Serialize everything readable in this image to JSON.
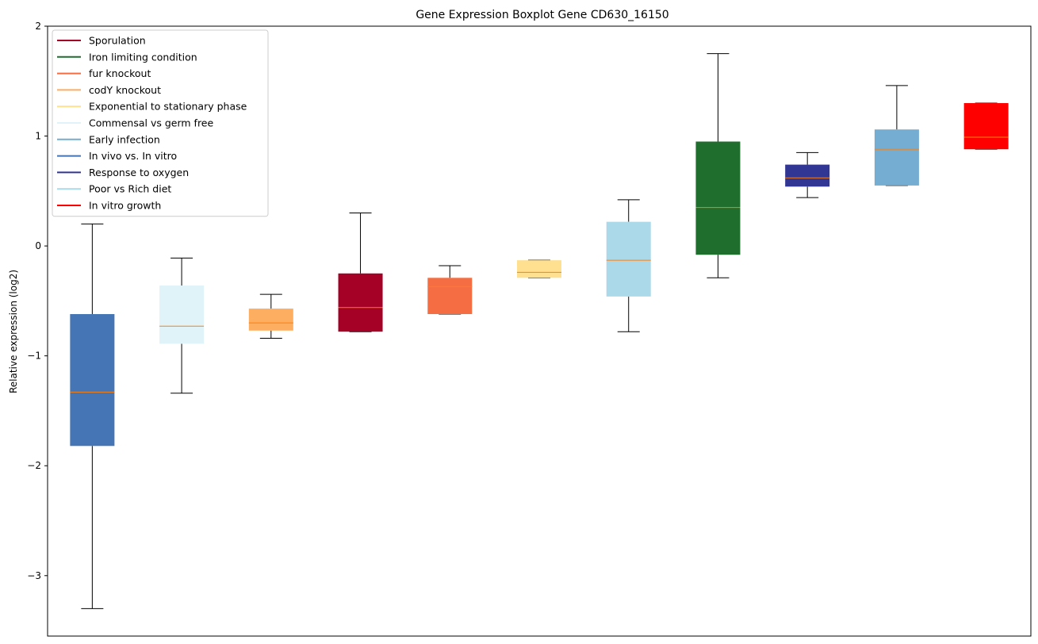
{
  "chart_data": {
    "type": "boxplot",
    "title": "Gene Expression Boxplot Gene CD630_16150",
    "xlabel": "",
    "ylabel": "Relative expression (log2)",
    "ylim": [
      -3.55,
      2.0
    ],
    "yticks": [
      {
        "value": 2,
        "label": "2"
      },
      {
        "value": 1,
        "label": "1"
      },
      {
        "value": 0,
        "label": "0"
      },
      {
        "value": -1,
        "label": "−1"
      },
      {
        "value": -2,
        "label": "−2"
      },
      {
        "value": -3,
        "label": "−3"
      }
    ],
    "median_color": "#ff7f0e",
    "series": [
      {
        "name": "In vivo vs. In vitro",
        "color": "#4575b4",
        "whisker_low": -3.3,
        "q1": -1.82,
        "median": -1.33,
        "q3": -0.62,
        "whisker_high": 0.2
      },
      {
        "name": "Commensal vs germ free",
        "color": "#e0f3f8",
        "whisker_low": -1.34,
        "q1": -0.89,
        "median": -0.73,
        "q3": -0.36,
        "whisker_high": -0.11
      },
      {
        "name": "codY knockout",
        "color": "#fdae61",
        "whisker_low": -0.84,
        "q1": -0.77,
        "median": -0.7,
        "q3": -0.57,
        "whisker_high": -0.44
      },
      {
        "name": "Sporulation",
        "color": "#a50026",
        "whisker_low": -0.78,
        "q1": -0.78,
        "median": -0.56,
        "q3": -0.25,
        "whisker_high": 0.3
      },
      {
        "name": "fur knockout",
        "color": "#f46d43",
        "whisker_low": -0.62,
        "q1": -0.62,
        "median": -0.37,
        "q3": -0.29,
        "whisker_high": -0.18
      },
      {
        "name": "Exponential to stationary phase",
        "color": "#fee090",
        "whisker_low": -0.29,
        "q1": -0.29,
        "median": -0.24,
        "q3": -0.13,
        "whisker_high": -0.13
      },
      {
        "name": "Poor vs Rich diet",
        "color": "#abd9e9",
        "whisker_low": -0.78,
        "q1": -0.46,
        "median": -0.13,
        "q3": 0.22,
        "whisker_high": 0.42
      },
      {
        "name": "Iron limiting condition",
        "color": "#1f6e2e",
        "whisker_low": -0.29,
        "q1": -0.08,
        "median": 0.35,
        "q3": 0.95,
        "whisker_high": 1.75
      },
      {
        "name": "Response to oxygen",
        "color": "#313695",
        "whisker_low": 0.44,
        "q1": 0.54,
        "median": 0.62,
        "q3": 0.74,
        "whisker_high": 0.85
      },
      {
        "name": "Early infection",
        "color": "#74add1",
        "whisker_low": 0.55,
        "q1": 0.55,
        "median": 0.88,
        "q3": 1.06,
        "whisker_high": 1.46
      },
      {
        "name": "In vitro growth",
        "color": "#ff0000",
        "whisker_low": 0.88,
        "q1": 0.88,
        "median": 0.99,
        "q3": 1.3,
        "whisker_high": 1.3
      }
    ],
    "legend": {
      "position": "top-left",
      "entries": [
        {
          "name": "Sporulation",
          "color": "#a50026"
        },
        {
          "name": "Iron limiting condition",
          "color": "#1f6e2e"
        },
        {
          "name": "fur knockout",
          "color": "#f46d43"
        },
        {
          "name": "codY knockout",
          "color": "#fdae61"
        },
        {
          "name": "Exponential to stationary phase",
          "color": "#fee090"
        },
        {
          "name": "Commensal vs germ free",
          "color": "#e0f3f8"
        },
        {
          "name": "Early infection",
          "color": "#74add1"
        },
        {
          "name": "In vivo vs. In vitro",
          "color": "#4575b4"
        },
        {
          "name": "Response to oxygen",
          "color": "#313695"
        },
        {
          "name": "Poor vs Rich diet",
          "color": "#abd9e9"
        },
        {
          "name": "In vitro growth",
          "color": "#ff0000"
        }
      ]
    }
  }
}
